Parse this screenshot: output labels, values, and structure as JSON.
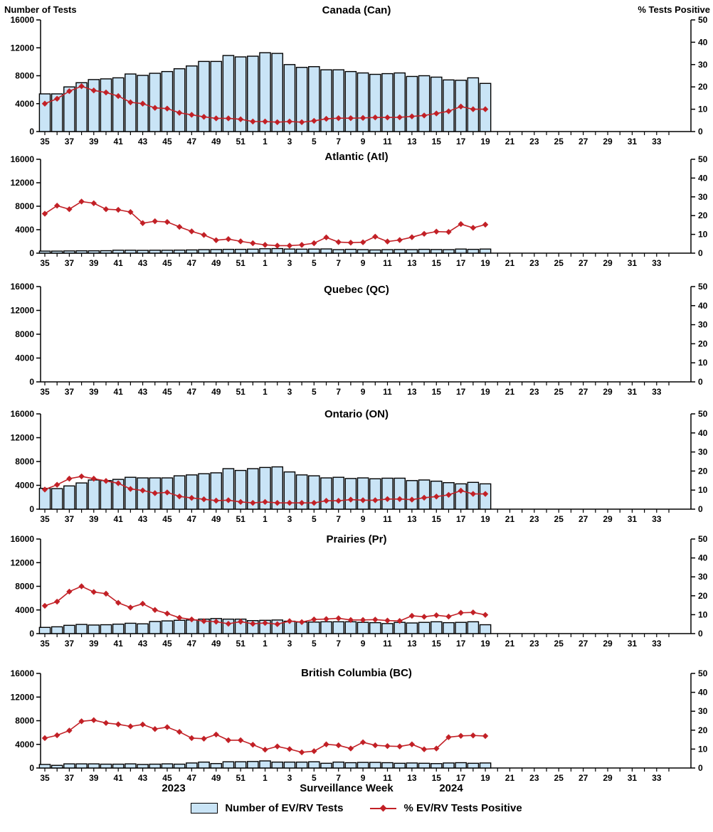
{
  "header": {
    "left_axis_label": "Number of Tests",
    "right_axis_label": "% Tests Positive"
  },
  "footer": {
    "year_left": "2023",
    "axis_title": "Surveillance Week",
    "year_right": "2024"
  },
  "legend": {
    "bars_label": "Number of EV/RV Tests",
    "line_label": "% EV/RV Tests Positive"
  },
  "colors": {
    "bar_fill": "#C9E4F6",
    "bar_stroke": "#000000",
    "line": "#C22026",
    "axis": "#000000"
  },
  "chart_data": {
    "type": "bar",
    "description": "Six stacked dual-axis panels: bars = number of EV/RV tests (left axis), line with diamond markers = % EV/RV tests positive (right axis), by surveillance week 2023-35 through 2024-34; data plotted through week 2024-19",
    "weeks": [
      35,
      36,
      37,
      38,
      39,
      40,
      41,
      42,
      43,
      44,
      45,
      46,
      47,
      48,
      49,
      50,
      51,
      52,
      1,
      2,
      3,
      4,
      5,
      6,
      7,
      8,
      9,
      10,
      11,
      12,
      13,
      14,
      15,
      16,
      17,
      18,
      19,
      20,
      21,
      22,
      23,
      24,
      25,
      26,
      27,
      28,
      29,
      30,
      31,
      32,
      33,
      34
    ],
    "x_tick_labels": [
      35,
      37,
      39,
      41,
      43,
      45,
      47,
      49,
      51,
      1,
      3,
      5,
      7,
      9,
      11,
      13,
      15,
      17,
      19,
      21,
      23,
      25,
      27,
      29,
      31,
      33
    ],
    "ylim_left": [
      0,
      16000
    ],
    "yticks_left": [
      0,
      4000,
      8000,
      12000,
      16000
    ],
    "ylim_right": [
      0,
      50
    ],
    "yticks_right": [
      0,
      10,
      20,
      30,
      40,
      50
    ],
    "grid": false,
    "legend_position": "bottom",
    "panels": [
      {
        "title": "Canada (Can)",
        "tests": [
          5400,
          5400,
          6400,
          7000,
          7450,
          7550,
          7700,
          8250,
          8050,
          8350,
          8600,
          9000,
          9400,
          10050,
          10050,
          10900,
          10700,
          10800,
          11300,
          11200,
          9600,
          9200,
          9300,
          8850,
          8850,
          8600,
          8400,
          8200,
          8300,
          8400,
          7900,
          8000,
          7800,
          7400,
          7350,
          7700,
          6900
        ],
        "pct_positive": [
          12.5,
          14.7,
          18.1,
          20.3,
          18.4,
          17.5,
          15.9,
          13.1,
          12.5,
          10.6,
          10.3,
          8.4,
          7.5,
          6.6,
          5.9,
          5.9,
          5.5,
          4.5,
          4.5,
          4.2,
          4.5,
          4.2,
          4.8,
          5.7,
          6.0,
          6.0,
          6.1,
          6.3,
          6.3,
          6.4,
          6.8,
          7.2,
          8.1,
          9.1,
          11.2,
          10.0,
          10.0
        ]
      },
      {
        "title": "Atlantic (Atl)",
        "tests": [
          350,
          350,
          380,
          400,
          400,
          420,
          500,
          500,
          480,
          500,
          500,
          520,
          550,
          600,
          620,
          650,
          650,
          680,
          750,
          780,
          700,
          680,
          700,
          720,
          600,
          650,
          600,
          550,
          600,
          620,
          600,
          650,
          620,
          600,
          700,
          650,
          700
        ],
        "pct_positive": [
          21.0,
          25.3,
          23.4,
          27.5,
          26.6,
          23.4,
          23.1,
          21.9,
          16.0,
          17.0,
          16.6,
          14.0,
          11.6,
          9.7,
          6.9,
          7.5,
          6.3,
          5.3,
          4.4,
          4.0,
          4.0,
          4.4,
          5.3,
          8.4,
          5.9,
          5.6,
          5.8,
          8.8,
          6.2,
          7.0,
          8.5,
          10.3,
          11.5,
          11.3,
          15.5,
          13.5,
          15.2
        ]
      },
      {
        "title": "Quebec (QC)",
        "tests": [],
        "pct_positive": []
      },
      {
        "title": "Ontario (ON)",
        "tests": [
          3500,
          3450,
          3900,
          4400,
          4900,
          4800,
          5000,
          5350,
          5250,
          5250,
          5250,
          5600,
          5750,
          5950,
          6100,
          6800,
          6500,
          6800,
          7000,
          7100,
          6250,
          5750,
          5600,
          5250,
          5350,
          5150,
          5250,
          5100,
          5200,
          5200,
          4800,
          4900,
          4700,
          4450,
          4250,
          4500,
          4250
        ],
        "pct_positive": [
          10.3,
          12.8,
          16.0,
          17.2,
          16.0,
          14.8,
          13.6,
          10.6,
          9.8,
          8.4,
          8.8,
          6.7,
          5.9,
          5.2,
          4.5,
          4.7,
          3.8,
          3.3,
          3.8,
          3.3,
          3.3,
          3.3,
          3.3,
          4.4,
          4.4,
          5.0,
          4.7,
          4.7,
          5.3,
          5.3,
          5.0,
          6.0,
          6.6,
          7.5,
          9.7,
          8.0,
          8.0
        ]
      },
      {
        "title": "Prairies (Pr)",
        "tests": [
          1050,
          1150,
          1400,
          1550,
          1450,
          1500,
          1600,
          1750,
          1650,
          2050,
          2150,
          2250,
          2300,
          2450,
          2550,
          2450,
          2450,
          2200,
          2250,
          2300,
          2100,
          1950,
          1950,
          2000,
          2000,
          2000,
          1900,
          1850,
          1700,
          1900,
          1800,
          1900,
          2000,
          1850,
          1900,
          2000,
          1500
        ],
        "pct_positive": [
          14.7,
          16.9,
          22.2,
          25.0,
          22.0,
          21.1,
          16.3,
          13.8,
          15.8,
          12.5,
          10.6,
          8.4,
          7.5,
          6.6,
          6.3,
          5.2,
          6.3,
          5.2,
          5.6,
          5.0,
          6.6,
          6.1,
          7.5,
          7.7,
          8.1,
          7.2,
          7.2,
          7.4,
          6.9,
          6.7,
          9.4,
          8.9,
          9.7,
          9.0,
          11.0,
          11.2,
          9.9
        ]
      },
      {
        "title": "British Columbia (BC)",
        "tests": [
          600,
          450,
          700,
          700,
          700,
          650,
          650,
          700,
          600,
          650,
          700,
          650,
          850,
          1000,
          750,
          1050,
          1050,
          1100,
          1200,
          1000,
          1000,
          1000,
          1050,
          800,
          1000,
          900,
          950,
          950,
          900,
          800,
          850,
          800,
          750,
          850,
          900,
          800,
          850
        ],
        "pct_positive": [
          15.8,
          17.3,
          19.8,
          24.7,
          25.3,
          23.8,
          23.1,
          22.0,
          23.0,
          20.6,
          21.6,
          19.1,
          15.8,
          15.5,
          17.7,
          14.7,
          14.7,
          12.3,
          9.7,
          11.4,
          10.0,
          8.3,
          8.9,
          12.5,
          12.0,
          10.3,
          13.6,
          12.0,
          11.6,
          11.4,
          12.5,
          9.9,
          10.3,
          16.3,
          17.0,
          17.2,
          16.9
        ]
      }
    ]
  }
}
